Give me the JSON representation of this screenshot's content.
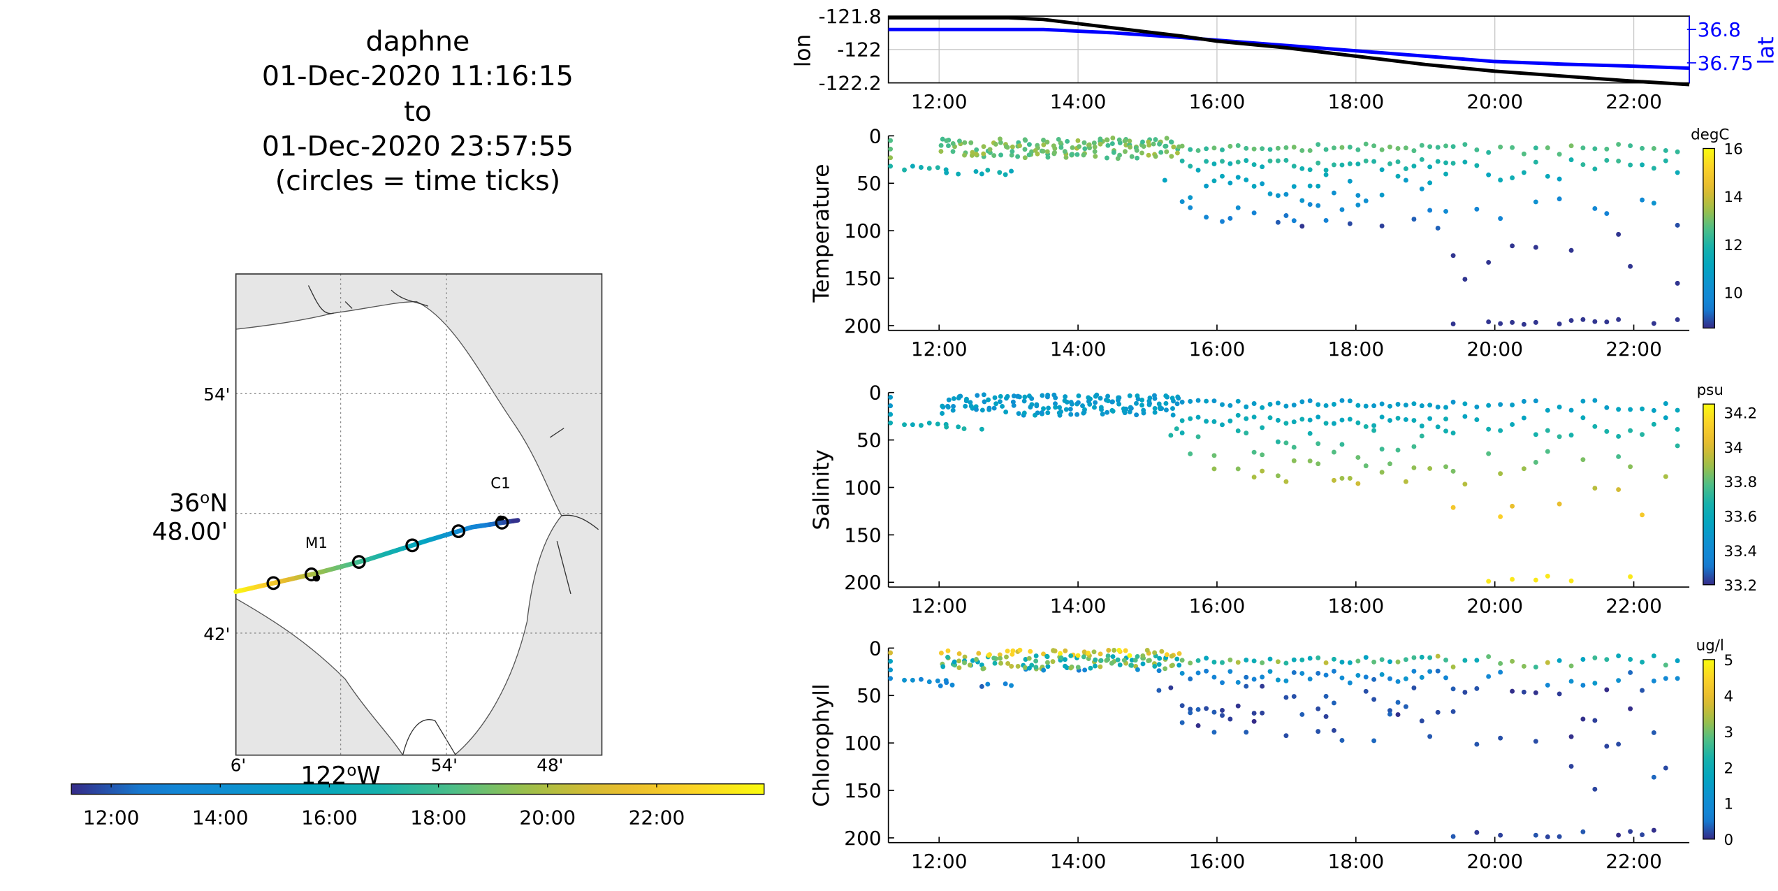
{
  "title": {
    "platform": "daphne",
    "start": "01-Dec-2020 11:16:15",
    "to": "to",
    "end": "01-Dec-2020 23:57:55",
    "note": "(circles = time ticks)"
  },
  "colors": {
    "track_lon": "#000000",
    "track_lat": "#0000ff",
    "land": "#e6e6e6",
    "grid": "#c8c8c8"
  },
  "chart_data": [
    {
      "id": "map",
      "type": "scatter",
      "x_tick_labels": [
        "6'",
        "54'",
        "48'"
      ],
      "x_unit_label": "122",
      "x_unit_sup": "o",
      "x_unit_suffix": "W",
      "y_tick_labels": [
        "54'",
        "42'"
      ],
      "y_unit_label": "36",
      "y_unit_sup": "o",
      "y_unit_suffix": "N",
      "y_unit_label2": "48.00'",
      "annotations": [
        "M1",
        "C1"
      ],
      "colormap": "parula",
      "colorbar_ticks": [
        "12:00",
        "14:00",
        "16:00",
        "18:00",
        "20:00",
        "22:00"
      ],
      "colorbar_hours": [
        12,
        14,
        16,
        18,
        20,
        22
      ],
      "time_range": [
        11.27,
        23.97
      ]
    },
    {
      "id": "lonlat",
      "type": "line",
      "ylabel": "lon",
      "ylabel_right": "lat",
      "y_ticks": [
        "-121.8",
        "-122",
        "-122.2"
      ],
      "y_ticks_right": [
        "36.8",
        "36.75"
      ],
      "ylim": [
        -122.2,
        -121.8
      ],
      "ylim_right": [
        36.72,
        36.82
      ],
      "x_ticks": [
        "12:00",
        "14:00",
        "16:00",
        "18:00",
        "20:00",
        "22:00"
      ],
      "x_hours": [
        12,
        14,
        16,
        18,
        20,
        22
      ],
      "xlim": [
        11.27,
        22.8
      ],
      "series": [
        {
          "name": "lon",
          "x": [
            11.27,
            13.0,
            13.5,
            14.5,
            15.5,
            16.0,
            17.0,
            18.0,
            19.0,
            20.0,
            21.0,
            22.0,
            22.8
          ],
          "values": [
            -121.81,
            -121.81,
            -121.82,
            -121.87,
            -121.92,
            -121.95,
            -121.99,
            -122.04,
            -122.09,
            -122.13,
            -122.16,
            -122.19,
            -122.21
          ]
        },
        {
          "name": "lat",
          "x": [
            11.27,
            13.0,
            13.5,
            14.5,
            15.5,
            16.0,
            17.0,
            18.0,
            19.0,
            20.0,
            21.0,
            22.0,
            22.8
          ],
          "values": [
            36.8,
            36.8,
            36.8,
            36.795,
            36.788,
            36.784,
            36.776,
            36.768,
            36.76,
            36.752,
            36.748,
            36.745,
            36.742
          ]
        }
      ]
    },
    {
      "id": "temperature",
      "type": "scatter",
      "ylabel": "Temperature",
      "y_ticks": [
        "0",
        "50",
        "100",
        "150",
        "200"
      ],
      "ylim": [
        0,
        205
      ],
      "xlim": [
        11.27,
        22.8
      ],
      "x_ticks": [
        "12:00",
        "14:00",
        "16:00",
        "18:00",
        "20:00",
        "22:00"
      ],
      "x_hours": [
        12,
        14,
        16,
        18,
        20,
        22
      ],
      "unit": "degC",
      "cbar_ticks": [
        "16",
        "14",
        "12",
        "10"
      ],
      "cbar_values": [
        16,
        14,
        12,
        10
      ],
      "clim": [
        8.5,
        16
      ],
      "pattern": "dense 0-25 m before 15:30, deeper profiles to ~100 m after; deep 195-200 m points after 19:30"
    },
    {
      "id": "salinity",
      "type": "scatter",
      "ylabel": "Salinity",
      "y_ticks": [
        "0",
        "50",
        "100",
        "150",
        "200"
      ],
      "ylim": [
        0,
        205
      ],
      "xlim": [
        11.27,
        22.8
      ],
      "x_ticks": [
        "12:00",
        "14:00",
        "16:00",
        "18:00",
        "20:00",
        "22:00"
      ],
      "x_hours": [
        12,
        14,
        16,
        18,
        20,
        22
      ],
      "unit": "psu",
      "cbar_ticks": [
        "34.2",
        "34",
        "33.8",
        "33.6",
        "33.4",
        "33.2"
      ],
      "cbar_values": [
        34.2,
        34.0,
        33.8,
        33.6,
        33.4,
        33.2
      ],
      "clim": [
        33.2,
        34.25
      ],
      "pattern": "fresher near surface (~33.5), saltier with depth (~34.1 below 100 m)"
    },
    {
      "id": "chlorophyll",
      "type": "scatter",
      "ylabel": "Chlorophyll",
      "y_ticks": [
        "0",
        "50",
        "100",
        "150",
        "200"
      ],
      "ylim": [
        0,
        205
      ],
      "xlim": [
        11.27,
        22.8
      ],
      "x_ticks": [
        "12:00",
        "14:00",
        "16:00",
        "18:00",
        "20:00",
        "22:00"
      ],
      "x_hours": [
        12,
        14,
        16,
        18,
        20,
        22
      ],
      "unit": "ug/l",
      "cbar_ticks": [
        "5",
        "4",
        "3",
        "2",
        "1",
        "0"
      ],
      "cbar_values": [
        5,
        4,
        3,
        2,
        1,
        0
      ],
      "clim": [
        0,
        5
      ],
      "pattern": "high chlorophyll (~4-5) in upper 20 m, near zero below 40 m"
    }
  ]
}
